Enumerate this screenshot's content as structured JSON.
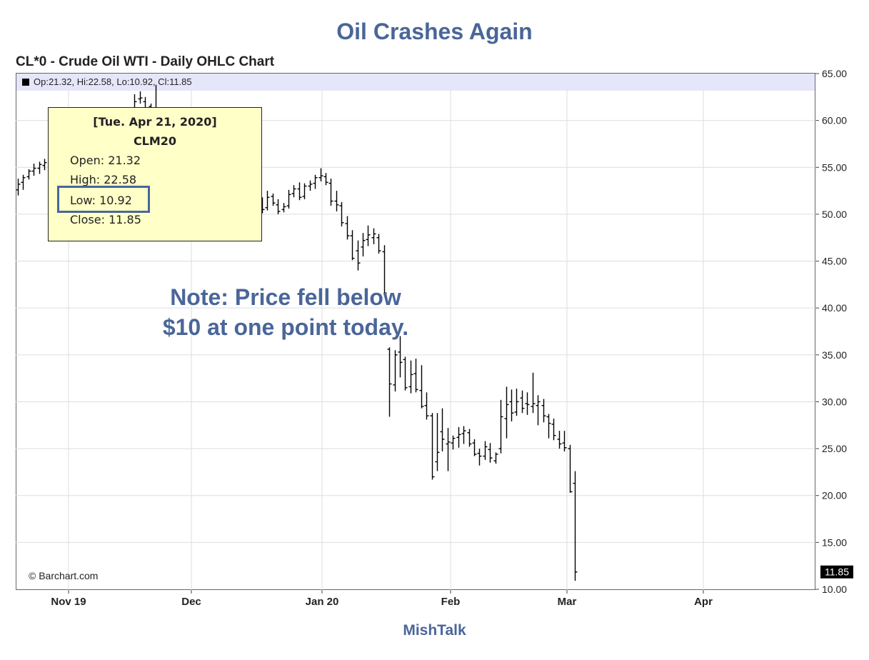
{
  "headline": "Oil Crashes Again",
  "chart_title": "CL*0 - Crude Oil WTI - Daily OHLC Chart",
  "ohlc_summary": "Op:21.32, Hi:22.58, Lo:10.92, Cl:11.85",
  "tooltip": {
    "date": "[Tue. Apr 21, 2020]",
    "symbol": "CLM20",
    "open": "Open: 21.32",
    "high": "High: 22.58",
    "low": "Low: 10.92",
    "close": "Close: 11.85"
  },
  "note": {
    "line1": "Note: Price fell below",
    "line2": "$10 at one point today."
  },
  "copyright": "© Barchart.com",
  "footer": "MishTalk",
  "chart_data": {
    "type": "ohlc",
    "title": "CL*0 - Crude Oil WTI - Daily OHLC Chart",
    "y_range": [
      10,
      65
    ],
    "y_ticks": [
      "10.00",
      "15.00",
      "20.00",
      "25.00",
      "30.00",
      "35.00",
      "40.00",
      "45.00",
      "50.00",
      "55.00",
      "60.00",
      "65.00"
    ],
    "x_ticks": [
      "Nov 19",
      "Dec",
      "Jan 20",
      "Feb",
      "Mar",
      "Apr"
    ],
    "last_price": "11.85",
    "grid": true,
    "series": [
      {
        "o": 52.6,
        "h": 53.8,
        "l": 52.0,
        "c": 53.2
      },
      {
        "o": 53.4,
        "h": 54.2,
        "l": 52.6,
        "c": 53.9
      },
      {
        "o": 54.0,
        "h": 54.8,
        "l": 53.7,
        "c": 54.6
      },
      {
        "o": 54.6,
        "h": 55.4,
        "l": 54.1,
        "c": 54.9
      },
      {
        "o": 54.9,
        "h": 55.6,
        "l": 54.3,
        "c": 55.3
      },
      {
        "o": 55.2,
        "h": 55.9,
        "l": 54.7,
        "c": 55.5
      },
      {
        "o": 59.5,
        "h": 60.0,
        "l": 58.9,
        "c": 59.7
      },
      {
        "o": 59.6,
        "h": 60.1,
        "l": 59.0,
        "c": 59.5
      },
      {
        "o": 59.4,
        "h": 59.9,
        "l": 58.8,
        "c": 59.2
      },
      {
        "o": 59.3,
        "h": 60.2,
        "l": 59.0,
        "c": 59.8
      },
      {
        "o": 59.8,
        "h": 60.4,
        "l": 59.5,
        "c": 60.1
      },
      {
        "o": 60.1,
        "h": 60.7,
        "l": 59.8,
        "c": 60.3
      },
      {
        "o": 60.3,
        "h": 60.9,
        "l": 59.9,
        "c": 60.6
      },
      {
        "o": 60.5,
        "h": 61.0,
        "l": 59.6,
        "c": 59.8
      },
      {
        "o": 59.7,
        "h": 60.6,
        "l": 59.0,
        "c": 59.3
      },
      {
        "o": 59.4,
        "h": 60.2,
        "l": 59.1,
        "c": 59.9
      },
      {
        "o": 60.2,
        "h": 62.8,
        "l": 60.0,
        "c": 62.0
      },
      {
        "o": 62.3,
        "h": 63.1,
        "l": 61.8,
        "c": 62.4
      },
      {
        "o": 62.0,
        "h": 62.5,
        "l": 60.9,
        "c": 61.2
      },
      {
        "o": 61.5,
        "h": 61.8,
        "l": 60.6,
        "c": 61.3
      },
      {
        "o": 61.3,
        "h": 63.8,
        "l": 58.1,
        "c": 58.4
      },
      {
        "o": 58.5,
        "h": 59.4,
        "l": 58.1,
        "c": 58.9
      },
      {
        "o": 58.8,
        "h": 59.3,
        "l": 58.2,
        "c": 58.6
      },
      {
        "o": 58.6,
        "h": 59.0,
        "l": 57.8,
        "c": 58.4
      },
      {
        "o": 58.2,
        "h": 58.7,
        "l": 57.3,
        "c": 57.6
      },
      {
        "o": 57.7,
        "h": 58.2,
        "l": 57.2,
        "c": 57.9
      },
      {
        "o": 57.8,
        "h": 58.3,
        "l": 57.0,
        "c": 57.4
      },
      {
        "o": 57.5,
        "h": 58.5,
        "l": 57.2,
        "c": 58.2
      },
      {
        "o": 58.1,
        "h": 58.8,
        "l": 57.6,
        "c": 58.0
      },
      {
        "o": 58.2,
        "h": 59.1,
        "l": 56.8,
        "c": 57.0
      },
      {
        "o": 56.8,
        "h": 57.2,
        "l": 55.3,
        "c": 55.6
      },
      {
        "o": 55.5,
        "h": 56.4,
        "l": 54.0,
        "c": 54.3
      },
      {
        "o": 54.1,
        "h": 54.9,
        "l": 52.3,
        "c": 52.6
      },
      {
        "o": 52.5,
        "h": 53.8,
        "l": 51.7,
        "c": 53.3
      },
      {
        "o": 53.3,
        "h": 54.2,
        "l": 52.9,
        "c": 53.5
      },
      {
        "o": 53.6,
        "h": 54.0,
        "l": 52.1,
        "c": 52.4
      },
      {
        "o": 52.3,
        "h": 53.3,
        "l": 51.6,
        "c": 52.8
      },
      {
        "o": 52.8,
        "h": 53.0,
        "l": 51.4,
        "c": 51.7
      },
      {
        "o": 51.5,
        "h": 52.0,
        "l": 50.0,
        "c": 50.4
      },
      {
        "o": 50.3,
        "h": 51.4,
        "l": 49.8,
        "c": 51.1
      },
      {
        "o": 51.1,
        "h": 51.8,
        "l": 50.1,
        "c": 50.5
      },
      {
        "o": 50.7,
        "h": 52.5,
        "l": 50.4,
        "c": 51.8
      },
      {
        "o": 51.9,
        "h": 52.2,
        "l": 50.9,
        "c": 51.2
      },
      {
        "o": 51.0,
        "h": 51.6,
        "l": 50.0,
        "c": 50.3
      },
      {
        "o": 50.5,
        "h": 51.2,
        "l": 50.2,
        "c": 50.8
      },
      {
        "o": 50.9,
        "h": 52.6,
        "l": 50.6,
        "c": 52.1
      },
      {
        "o": 52.2,
        "h": 53.1,
        "l": 51.8,
        "c": 52.7
      },
      {
        "o": 52.7,
        "h": 53.4,
        "l": 51.5,
        "c": 51.8
      },
      {
        "o": 51.9,
        "h": 53.3,
        "l": 51.6,
        "c": 53.0
      },
      {
        "o": 53.0,
        "h": 53.6,
        "l": 52.5,
        "c": 53.2
      },
      {
        "o": 53.3,
        "h": 54.2,
        "l": 52.7,
        "c": 53.9
      },
      {
        "o": 53.9,
        "h": 54.9,
        "l": 53.5,
        "c": 54.1
      },
      {
        "o": 54.0,
        "h": 54.4,
        "l": 53.1,
        "c": 53.4
      },
      {
        "o": 53.3,
        "h": 53.8,
        "l": 50.9,
        "c": 51.4
      },
      {
        "o": 51.4,
        "h": 52.5,
        "l": 50.3,
        "c": 51.0
      },
      {
        "o": 50.9,
        "h": 51.3,
        "l": 48.7,
        "c": 49.1
      },
      {
        "o": 49.0,
        "h": 49.8,
        "l": 47.3,
        "c": 47.7
      },
      {
        "o": 47.7,
        "h": 48.3,
        "l": 45.1,
        "c": 45.3
      },
      {
        "o": 46.1,
        "h": 47.2,
        "l": 44.0,
        "c": 44.8
      },
      {
        "o": 46.5,
        "h": 48.0,
        "l": 45.5,
        "c": 47.2
      },
      {
        "o": 47.3,
        "h": 48.8,
        "l": 46.6,
        "c": 47.8
      },
      {
        "o": 47.5,
        "h": 48.5,
        "l": 46.8,
        "c": 47.9
      },
      {
        "o": 47.5,
        "h": 47.9,
        "l": 45.8,
        "c": 46.1
      },
      {
        "o": 46.0,
        "h": 46.7,
        "l": 41.3,
        "c": 41.6
      },
      {
        "o": 35.6,
        "h": 35.8,
        "l": 28.4,
        "c": 31.9
      },
      {
        "o": 31.8,
        "h": 35.5,
        "l": 31.1,
        "c": 35.0
      },
      {
        "o": 35.3,
        "h": 37.0,
        "l": 32.6,
        "c": 34.2
      },
      {
        "o": 34.5,
        "h": 34.8,
        "l": 31.2,
        "c": 31.5
      },
      {
        "o": 31.6,
        "h": 34.4,
        "l": 30.9,
        "c": 32.9
      },
      {
        "o": 33.0,
        "h": 34.6,
        "l": 31.0,
        "c": 31.3
      },
      {
        "o": 31.2,
        "h": 33.9,
        "l": 29.3,
        "c": 29.5
      },
      {
        "o": 29.6,
        "h": 31.0,
        "l": 28.1,
        "c": 28.5
      },
      {
        "o": 28.5,
        "h": 28.8,
        "l": 21.7,
        "c": 22.0
      },
      {
        "o": 23.6,
        "h": 28.8,
        "l": 22.6,
        "c": 24.6
      },
      {
        "o": 26.8,
        "h": 29.3,
        "l": 24.7,
        "c": 26.0
      },
      {
        "o": 25.5,
        "h": 27.2,
        "l": 22.6,
        "c": 25.7
      },
      {
        "o": 25.6,
        "h": 26.4,
        "l": 24.9,
        "c": 26.1
      },
      {
        "o": 26.2,
        "h": 27.3,
        "l": 25.1,
        "c": 26.5
      },
      {
        "o": 26.6,
        "h": 27.4,
        "l": 25.5,
        "c": 26.9
      },
      {
        "o": 26.7,
        "h": 27.1,
        "l": 25.2,
        "c": 25.5
      },
      {
        "o": 25.6,
        "h": 26.0,
        "l": 24.2,
        "c": 24.4
      },
      {
        "o": 24.5,
        "h": 25.0,
        "l": 23.2,
        "c": 24.2
      },
      {
        "o": 24.2,
        "h": 25.8,
        "l": 23.8,
        "c": 25.2
      },
      {
        "o": 24.9,
        "h": 25.6,
        "l": 23.5,
        "c": 24.0
      },
      {
        "o": 23.7,
        "h": 24.6,
        "l": 23.4,
        "c": 24.4
      },
      {
        "o": 25.0,
        "h": 30.2,
        "l": 24.5,
        "c": 28.4
      },
      {
        "o": 28.2,
        "h": 31.6,
        "l": 26.1,
        "c": 29.7
      },
      {
        "o": 30.0,
        "h": 31.3,
        "l": 27.9,
        "c": 28.8
      },
      {
        "o": 28.9,
        "h": 31.4,
        "l": 28.5,
        "c": 30.0
      },
      {
        "o": 30.4,
        "h": 31.2,
        "l": 28.8,
        "c": 29.3
      },
      {
        "o": 29.8,
        "h": 31.0,
        "l": 28.6,
        "c": 29.7
      },
      {
        "o": 29.5,
        "h": 33.1,
        "l": 28.8,
        "c": 29.8
      },
      {
        "o": 29.6,
        "h": 30.7,
        "l": 27.5,
        "c": 30.0
      },
      {
        "o": 29.6,
        "h": 30.3,
        "l": 27.8,
        "c": 28.5
      },
      {
        "o": 28.4,
        "h": 28.7,
        "l": 26.1,
        "c": 27.7
      },
      {
        "o": 27.6,
        "h": 28.2,
        "l": 25.9,
        "c": 26.4
      },
      {
        "o": 26.0,
        "h": 26.9,
        "l": 25.0,
        "c": 25.5
      },
      {
        "o": 25.6,
        "h": 26.9,
        "l": 24.7,
        "c": 25.1
      },
      {
        "o": 25.0,
        "h": 25.4,
        "l": 20.3,
        "c": 20.4
      },
      {
        "o": 21.3,
        "h": 22.6,
        "l": 10.9,
        "c": 11.85
      }
    ],
    "series_x_start": 25,
    "series_x_step": 7.43
  }
}
